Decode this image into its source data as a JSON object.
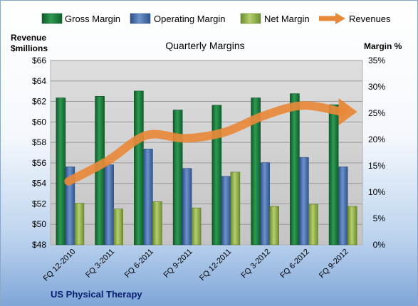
{
  "chart_data": {
    "type": "bar",
    "title": "Quarterly Margins",
    "left_axis_label": [
      "Revenue",
      "$millions"
    ],
    "right_axis_label": "Margin %",
    "footer": "US Physical Therapy",
    "categories": [
      "FQ 12-2010",
      "FQ 3-2011",
      "FQ 6-2011",
      "FQ 9-2011",
      "FQ 12-2011",
      "FQ 3-2012",
      "FQ 6-2012",
      "FQ 9-2012"
    ],
    "left_axis": {
      "min": 48,
      "max": 66,
      "step": 2,
      "ticks": [
        "$48",
        "$50",
        "$52",
        "$54",
        "$56",
        "$58",
        "$60",
        "$62",
        "$64",
        "$66"
      ]
    },
    "right_axis": {
      "min": 0,
      "max": 35,
      "step": 5,
      "ticks": [
        "0%",
        "5%",
        "10%",
        "15%",
        "20%",
        "25%",
        "30%",
        "35%"
      ]
    },
    "legend": [
      {
        "name": "Gross Margin",
        "kind": "bar",
        "color": "#1f7a3e"
      },
      {
        "name": "Operating Margin",
        "kind": "bar",
        "color": "#4a72b0"
      },
      {
        "name": "Net Margin",
        "kind": "bar",
        "color": "#8fae4c"
      },
      {
        "name": "Revenues",
        "kind": "arrow",
        "color": "#e8893a"
      }
    ],
    "series": [
      {
        "name": "Gross Margin",
        "axis": "right",
        "color": "#1f7a3e",
        "values": [
          27.9,
          28.2,
          29.2,
          25.6,
          26.5,
          27.9,
          28.7,
          26.6
        ]
      },
      {
        "name": "Operating Margin",
        "axis": "right",
        "color": "#4a72b0",
        "values": [
          14.8,
          15.2,
          18.2,
          14.5,
          13.0,
          15.6,
          16.6,
          14.8
        ]
      },
      {
        "name": "Net Margin",
        "axis": "right",
        "color": "#8fae4c",
        "values": [
          7.9,
          6.8,
          8.2,
          7.0,
          13.8,
          7.3,
          7.7,
          7.3
        ]
      },
      {
        "name": "Revenues",
        "axis": "left",
        "color": "#e8893a",
        "values": [
          54.2,
          56.2,
          58.7,
          58.4,
          59.0,
          60.6,
          61.6,
          61.0
        ]
      }
    ],
    "grid": true
  }
}
